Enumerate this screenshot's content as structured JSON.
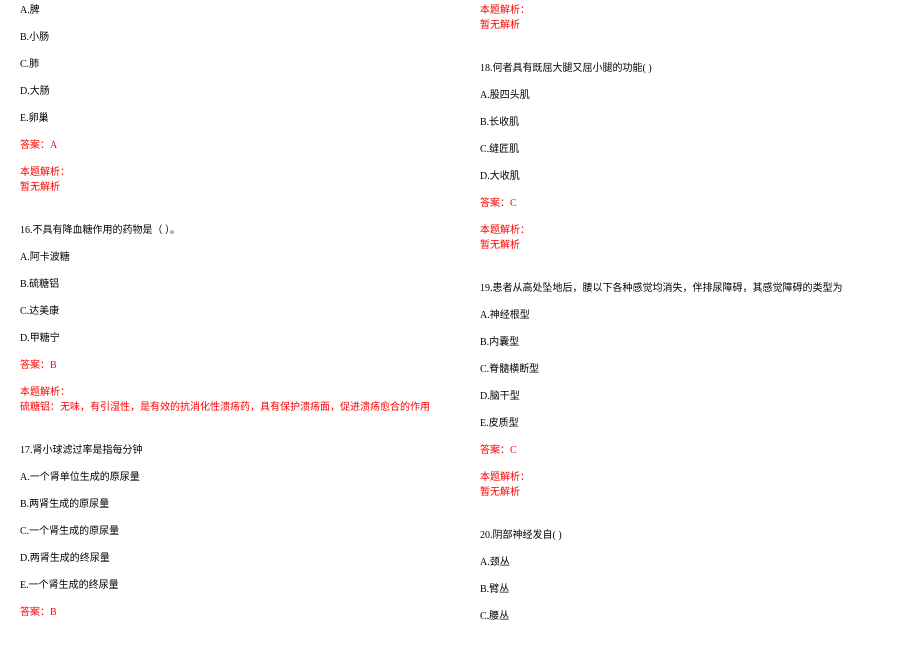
{
  "colors": {
    "text": "#000000",
    "answer": "#ff0000",
    "background": "#ffffff"
  },
  "typography": {
    "fontsize": 10,
    "line_spacing": 14,
    "font_family": "SimSun"
  },
  "left": {
    "q15": {
      "opts": {
        "A": "A.脾",
        "B": "B.小肠",
        "C": "C.肺",
        "D": "D.大肠",
        "E": "E.卵巢"
      },
      "answer": "答案：A",
      "explain_header": "本题解析：",
      "explain_body": "暂无解析"
    },
    "q16": {
      "stem": "16.不具有降血糖作用的药物是（ ）。",
      "opts": {
        "A": "A.阿卡波糖",
        "B": "B.硫糖铝",
        "C": "C.达美康",
        "D": "D.甲糖宁"
      },
      "answer": "答案：B",
      "explain_header": "本题解析：",
      "explain_body": "硫糖铝：无味，有引湿性，是有效的抗消化性溃疡药，具有保护溃疡面，促进溃疡愈合的作用"
    },
    "q17": {
      "stem": "17.肾小球滤过率是指每分钟",
      "opts": {
        "A": "A.一个肾单位生成的原尿量",
        "B": "B.两肾生成的原尿量",
        "C": "C.一个肾生成的原尿量",
        "D": "D.两肾生成的终尿量",
        "E": "E.一个肾生成的终尿量"
      },
      "answer": "答案：B"
    }
  },
  "right": {
    "q17": {
      "explain_header": "本题解析：",
      "explain_body": "暂无解析"
    },
    "q18": {
      "stem": "18.何者具有既屈大腿又屈小腿的功能( )",
      "opts": {
        "A": "A.股四头肌",
        "B": "B.长收肌",
        "C": "C.缝匠肌",
        "D": "D.大收肌"
      },
      "answer": "答案：C",
      "explain_header": "本题解析：",
      "explain_body": "暂无解析"
    },
    "q19": {
      "stem": "19.患者从高处坠地后，腰以下各种感觉均消失，伴排尿障碍，其感觉障碍的类型为",
      "opts": {
        "A": "A.神经根型",
        "B": "B.内囊型",
        "C": "C.脊髓横断型",
        "D": "D.脑干型",
        "E": "E.皮质型"
      },
      "answer": "答案：C",
      "explain_header": "本题解析：",
      "explain_body": "暂无解析"
    },
    "q20": {
      "stem": "20.阴部神经发自( )",
      "opts": {
        "A": "A.颈丛",
        "B": "B.臂丛",
        "C": "C.腰丛"
      }
    }
  }
}
